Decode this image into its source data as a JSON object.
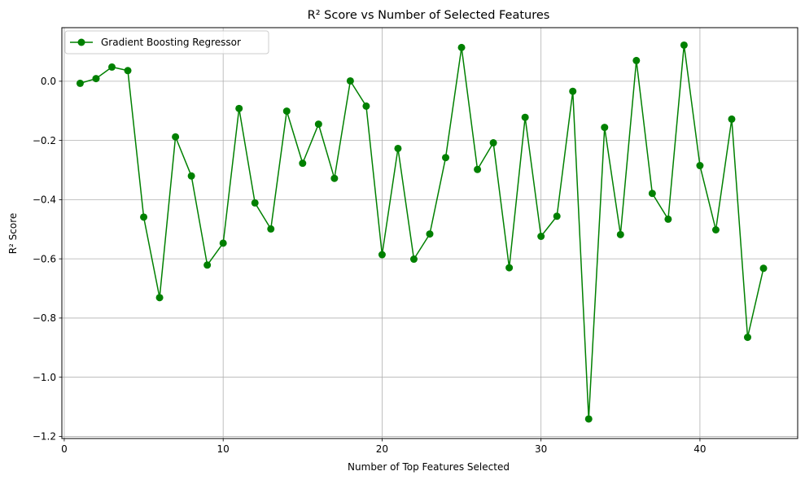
{
  "chart_data": {
    "type": "line",
    "title": "R² Score vs Number of Selected Features",
    "xlabel": "Number of Top Features Selected",
    "ylabel": "R² Score",
    "xlim": [
      -0.15,
      46.15
    ],
    "ylim": [
      -1.207,
      0.181
    ],
    "xticks": [
      0,
      10,
      20,
      30,
      40
    ],
    "yticks": [
      -1.2,
      -1.0,
      -0.8,
      -0.6,
      -0.4,
      -0.2,
      0.0
    ],
    "xtick_labels": [
      "0",
      "10",
      "20",
      "30",
      "40"
    ],
    "ytick_labels": [
      "−1.2",
      "−1.0",
      "−0.8",
      "−0.6",
      "−0.4",
      "−0.2",
      "0.0"
    ],
    "grid": true,
    "legend_position": "upper-left",
    "series": [
      {
        "name": "Gradient Boosting Regressor",
        "color": "#008000",
        "marker": "circle",
        "x": [
          1,
          2,
          3,
          4,
          5,
          6,
          7,
          8,
          9,
          10,
          11,
          12,
          13,
          14,
          15,
          16,
          17,
          18,
          19,
          20,
          21,
          22,
          23,
          24,
          25,
          26,
          27,
          28,
          29,
          30,
          31,
          32,
          33,
          34,
          35,
          36,
          37,
          38,
          39,
          40,
          41,
          42,
          43,
          44
        ],
        "y": [
          -0.007,
          0.009,
          0.048,
          0.036,
          -0.459,
          -0.731,
          -0.188,
          -0.32,
          -0.621,
          -0.547,
          -0.092,
          -0.411,
          -0.499,
          -0.101,
          -0.277,
          -0.145,
          -0.328,
          0.001,
          -0.084,
          -0.586,
          -0.227,
          -0.601,
          -0.516,
          -0.258,
          0.114,
          -0.298,
          -0.208,
          -0.63,
          -0.122,
          -0.524,
          -0.456,
          -0.034,
          -1.141,
          -0.156,
          -0.518,
          0.07,
          -0.379,
          -0.466,
          0.122,
          -0.285,
          -0.502,
          -0.128,
          -0.865,
          -0.632
        ]
      }
    ]
  }
}
